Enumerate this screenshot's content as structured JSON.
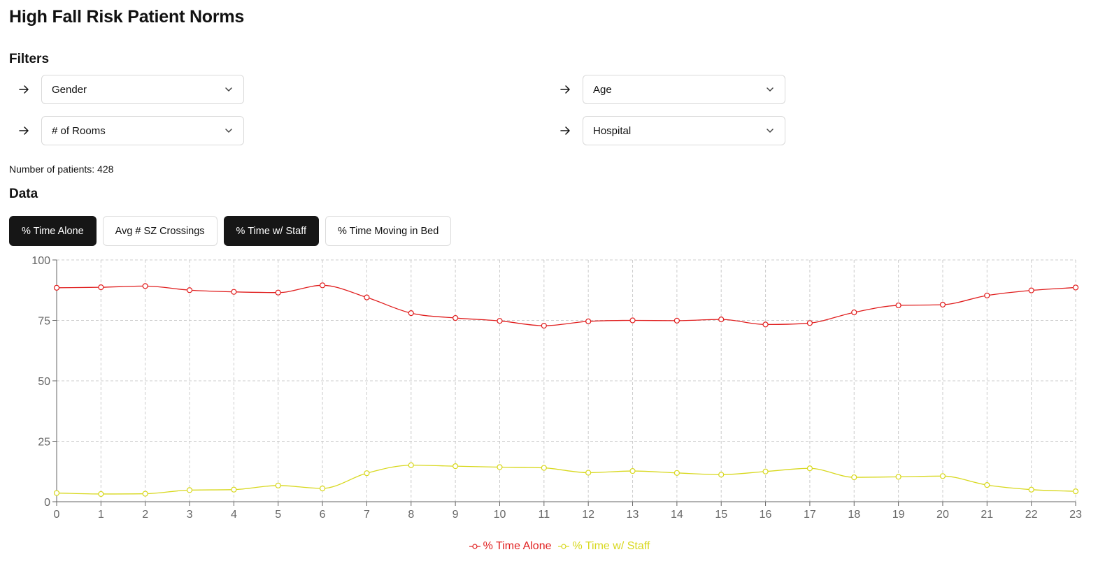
{
  "page": {
    "title": "High Fall Risk Patient Norms"
  },
  "filters": {
    "heading": "Filters",
    "items": [
      {
        "id": "gender",
        "label": "Gender"
      },
      {
        "id": "age",
        "label": "Age"
      },
      {
        "id": "rooms",
        "label": "# of Rooms"
      },
      {
        "id": "hospital",
        "label": "Hospital"
      }
    ]
  },
  "summary": {
    "patients_label": "Number of patients: 428"
  },
  "data_section": {
    "heading": "Data",
    "tabs": [
      {
        "label": "% Time Alone",
        "active": true
      },
      {
        "label": "Avg # SZ Crossings",
        "active": false
      },
      {
        "label": "% Time w/ Staff",
        "active": true
      },
      {
        "label": "% Time Moving in Bed",
        "active": false
      }
    ]
  },
  "colors": {
    "series_alone": "#e01e1e",
    "series_staff": "#d8d81e",
    "grid": "#cccccc",
    "tab_active_bg": "#161616"
  },
  "icons": {
    "filter_arrow": "arrow-right-icon",
    "dropdown": "chevron-down-icon"
  },
  "chart_data": {
    "type": "line",
    "x": [
      0,
      1,
      2,
      3,
      4,
      5,
      6,
      7,
      8,
      9,
      10,
      11,
      12,
      13,
      14,
      15,
      16,
      17,
      18,
      19,
      20,
      21,
      22,
      23
    ],
    "ylim": [
      0,
      100
    ],
    "yticks": [
      0,
      25,
      50,
      75,
      100
    ],
    "grid": true,
    "legend_position": "bottom-center",
    "series": [
      {
        "name": "% Time Alone",
        "color": "#e01e1e",
        "values": [
          88.5,
          88.7,
          89.2,
          87.5,
          86.8,
          86.5,
          89.5,
          84.5,
          78,
          76,
          74.8,
          72.8,
          74.6,
          75,
          74.9,
          75.4,
          73.3,
          73.9,
          78.3,
          81.2,
          81.5,
          85.3,
          87.4,
          88.6
        ]
      },
      {
        "name": "% Time w/ Staff",
        "color": "#d8d81e",
        "values": [
          3.6,
          3.2,
          3.3,
          4.8,
          5,
          6.7,
          5.5,
          11.8,
          15.1,
          14.7,
          14.3,
          14,
          12,
          12.7,
          11.9,
          11.2,
          12.5,
          13.8,
          10.1,
          10.3,
          10.6,
          6.9,
          5,
          4.3
        ]
      }
    ]
  }
}
